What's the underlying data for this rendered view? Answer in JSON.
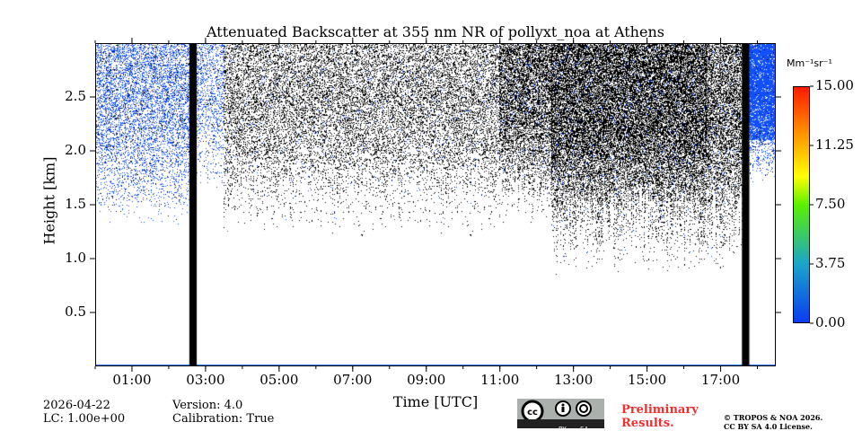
{
  "chart_data": {
    "type": "heatmap",
    "title": "Attenuated Backscatter at 355 nm NR of pollyxt_noa at Athens",
    "xlabel": "Time [UTC]",
    "ylabel": "Height [km]",
    "xlim_hours": [
      0,
      18.5
    ],
    "ylim": [
      0,
      3.0
    ],
    "xticks": [
      "01:00",
      "03:00",
      "05:00",
      "07:00",
      "09:00",
      "11:00",
      "13:00",
      "15:00",
      "17:00"
    ],
    "xtick_hours": [
      1,
      3,
      5,
      7,
      9,
      11,
      13,
      15,
      17
    ],
    "yticks": [
      "0.5",
      "1.0",
      "1.5",
      "2.0",
      "2.5"
    ],
    "ytick_values": [
      0.5,
      1.0,
      1.5,
      2.0,
      2.5
    ],
    "colorbar": {
      "label": "Mm⁻¹sr⁻¹",
      "ticks": [
        "0.00",
        "3.75",
        "7.50",
        "11.25",
        "15.00"
      ],
      "range": [
        0,
        15
      ]
    },
    "no_data_periods_hours": [
      [
        2.56,
        2.76
      ],
      [
        17.58,
        17.78
      ]
    ],
    "signal_regions": [
      {
        "t": [
          0,
          2.56
        ],
        "h": [
          1.3,
          3.0
        ],
        "value": "low",
        "density": 0.35
      },
      {
        "t": [
          2.76,
          3.5
        ],
        "h": [
          1.6,
          3.0
        ],
        "value": "low",
        "density": 0.25
      },
      {
        "t": [
          3.5,
          11
        ],
        "h": [
          1.2,
          3.0
        ],
        "value": "very-low",
        "density": 0.3
      },
      {
        "t": [
          11,
          12.4
        ],
        "h": [
          1.3,
          3.0
        ],
        "value": "very-low",
        "density": 0.55
      },
      {
        "t": [
          12.4,
          16.6
        ],
        "h": [
          0.85,
          3.0
        ],
        "value": "very-low",
        "density": 0.65
      },
      {
        "t": [
          16.6,
          17.58
        ],
        "h": [
          0.85,
          3.0
        ],
        "value": "very-low",
        "density": 0.5
      },
      {
        "t": [
          17.78,
          18.5
        ],
        "h": [
          1.7,
          3.0
        ],
        "value": "low",
        "density": 0.6
      }
    ]
  },
  "footer": {
    "date": "2026-04-22",
    "lc": "LC: 1.00e+00",
    "version": "Version: 4.0",
    "calibration": "Calibration: True",
    "preliminary": [
      "Preliminary",
      "Results."
    ],
    "copyright": "© TROPOS & NOA 2026.",
    "license": "CC BY SA 4.0 License.",
    "cc_logo": "CC BY SA"
  }
}
